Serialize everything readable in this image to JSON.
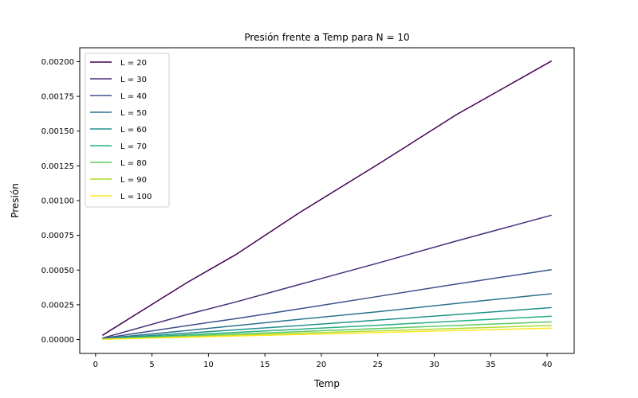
{
  "chart_data": {
    "type": "line",
    "title": "Presión frente a Temp para N = 10",
    "xlabel": "Temp",
    "ylabel": "Presión",
    "xlim": [
      -1.4,
      42.4
    ],
    "ylim": [
      -0.0001,
      0.0021
    ],
    "xticks": [
      0,
      5,
      10,
      15,
      20,
      25,
      30,
      35,
      40
    ],
    "yticks": [
      0.0,
      0.00025,
      0.0005,
      0.00075,
      0.001,
      0.00125,
      0.0015,
      0.00175,
      0.002
    ],
    "ytick_labels": [
      "0.00000",
      "0.00025",
      "0.00050",
      "0.00075",
      "0.00100",
      "0.00125",
      "0.00150",
      "0.00175",
      "0.00200"
    ],
    "legend_position": "upper-left",
    "grid": false,
    "x": [
      0.6,
      8.1,
      12.4,
      18.0,
      25.0,
      32.0,
      40.4
    ],
    "series": [
      {
        "name": "L = 20",
        "color": "#440154",
        "values": [
          3e-05,
          0.00041,
          0.00061,
          0.00091,
          0.00126,
          0.00162,
          0.002005
        ]
      },
      {
        "name": "L = 30",
        "color": "#472d7b",
        "values": [
          1e-05,
          0.00018,
          0.00027,
          0.000395,
          0.00055,
          0.00071,
          0.000895
        ]
      },
      {
        "name": "L = 40",
        "color": "#3b528b",
        "values": [
          8e-06,
          0.0001,
          0.00015,
          0.00022,
          0.00031,
          0.0004,
          0.000503
        ]
      },
      {
        "name": "L = 50",
        "color": "#2c728e",
        "values": [
          6e-06,
          6.5e-05,
          0.0001,
          0.000145,
          0.0002,
          0.00026,
          0.00033
        ]
      },
      {
        "name": "L = 60",
        "color": "#21918c",
        "values": [
          5e-06,
          4.6e-05,
          7e-05,
          0.0001,
          0.00014,
          0.00018,
          0.00023
        ]
      },
      {
        "name": "L = 70",
        "color": "#28ae80",
        "values": [
          4e-06,
          3.4e-05,
          5.1e-05,
          7.4e-05,
          0.000103,
          0.000133,
          0.000168
        ]
      },
      {
        "name": "L = 80",
        "color": "#5ec962",
        "values": [
          3e-06,
          2.6e-05,
          3.9e-05,
          5.7e-05,
          7.9e-05,
          0.000101,
          0.000128
        ]
      },
      {
        "name": "L = 90",
        "color": "#addc30",
        "values": [
          2e-06,
          2e-05,
          3.1e-05,
          4.5e-05,
          6.2e-05,
          8e-05,
          0.000101
        ]
      },
      {
        "name": "L = 100",
        "color": "#fde725",
        "values": [
          2e-06,
          1.6e-05,
          2.5e-05,
          3.6e-05,
          5e-05,
          6.5e-05,
          8.2e-05
        ]
      }
    ]
  }
}
